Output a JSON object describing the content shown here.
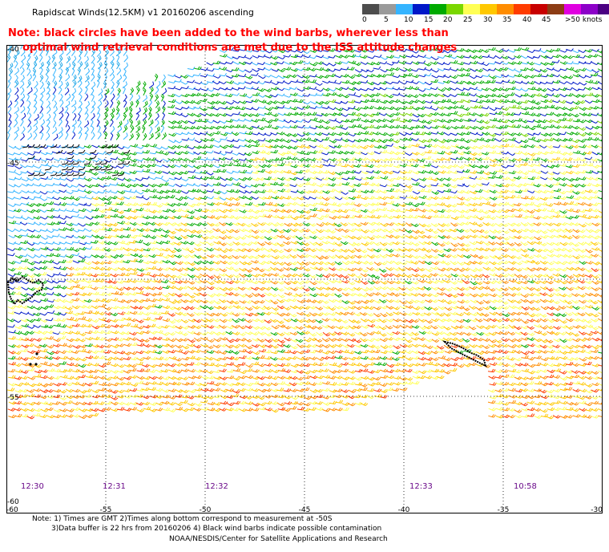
{
  "title": "Rapidscat Winds(12.5KM) v1 20160206 ascending",
  "note": {
    "line1": "Note: black circles have been added to the wind barbs, wherever less than",
    "line2": "optimal wind retrieval conditions are met due to the ISS attitude changes"
  },
  "colorbar": {
    "labels": [
      "0",
      "5",
      "10",
      "15",
      "20",
      "25",
      "30",
      "35",
      "40",
      "45",
      ">50 knots"
    ],
    "colors": [
      "#4d4d4d",
      "#9a9a9a",
      "#35b4ff",
      "#0018c8",
      "#00aa00",
      "#7ad700",
      "#ffff55",
      "#ffc800",
      "#ff8c00",
      "#ff3c00",
      "#c80000",
      "#8c3c14",
      "#e000e0",
      "#8c00c8",
      "#4b0082"
    ]
  },
  "map": {
    "x_axis_labels": [
      "-60",
      "-55",
      "-50",
      "-45",
      "-40",
      "-35",
      "-30"
    ],
    "y_axis_labels": [
      "-40",
      "-45",
      "-50",
      "-55",
      "-60"
    ],
    "pass_times": [
      "12:30",
      "12:31",
      "12:32",
      "12:33",
      "10:58"
    ]
  },
  "footer": {
    "line1": "Note: 1) Times are GMT 2)Times along bottom correspond to measurement at -50S",
    "line2": "3)Data buffer is 22 hrs from 20160206 4) Black wind barbs indicate possible contamination",
    "line3": "NOAA/NESDIS/Center for Satellite Applications and Research"
  }
}
